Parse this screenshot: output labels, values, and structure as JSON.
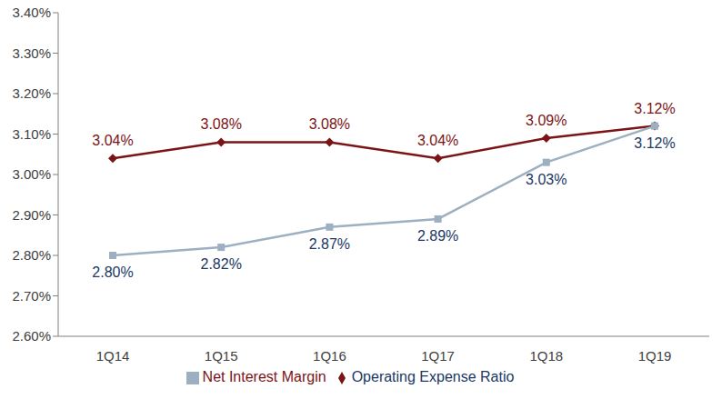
{
  "chart_data": {
    "type": "line",
    "categories": [
      "1Q14",
      "1Q15",
      "1Q16",
      "1Q17",
      "1Q18",
      "1Q19"
    ],
    "series": [
      {
        "name": "Operating Expense Ratio",
        "color": "#7b1416",
        "marker": "diamond",
        "values": [
          3.04,
          3.08,
          3.08,
          3.04,
          3.09,
          3.12
        ],
        "value_labels": [
          "3.04%",
          "3.08%",
          "3.08%",
          "3.04%",
          "3.09%",
          "3.12%"
        ]
      },
      {
        "name": "Net Interest Margin",
        "color": "#9cb0c2",
        "marker": "square",
        "values": [
          2.8,
          2.82,
          2.87,
          2.89,
          3.03,
          3.12
        ],
        "value_labels": [
          "2.80%",
          "2.82%",
          "2.87%",
          "2.89%",
          "3.03%",
          "3.12%"
        ]
      }
    ],
    "ylim": [
      2.6,
      3.4
    ],
    "yticks": [
      {
        "value": 2.6,
        "label": "2.60%"
      },
      {
        "value": 2.7,
        "label": "2.70%"
      },
      {
        "value": 2.8,
        "label": "2.80%"
      },
      {
        "value": 2.9,
        "label": "2.90%"
      },
      {
        "value": 3.0,
        "label": "3.00%"
      },
      {
        "value": 3.1,
        "label": "3.10%"
      },
      {
        "value": 3.2,
        "label": "3.20%"
      },
      {
        "value": 3.3,
        "label": "3.30%"
      },
      {
        "value": 3.4,
        "label": "3.40%"
      }
    ],
    "grid": false,
    "legend": "bottom",
    "data_labels": true
  }
}
